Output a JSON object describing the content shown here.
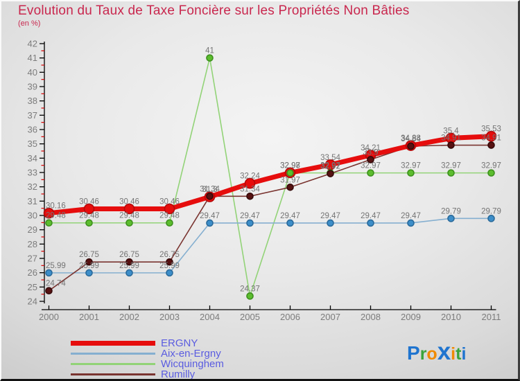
{
  "title": "Evolution du Taux de Taxe Foncière sur les Propriétés Non Bâties",
  "subtitle": "(en %)",
  "colors": {
    "title": "#c9274e",
    "legend_text": "#5a5ce0",
    "axis": "#000000",
    "minor_tick": "#d40000",
    "tick_label": "#7c7c7c",
    "point_label": "#747474"
  },
  "chart_data": {
    "type": "line",
    "x": [
      "2000",
      "2001",
      "2002",
      "2003",
      "2004",
      "2005",
      "2006",
      "2007",
      "2008",
      "2009",
      "2010",
      "2011"
    ],
    "ylim": [
      24,
      42
    ],
    "ytick_major_step": 1,
    "ytick_minor_step": 0.5,
    "grid": false,
    "legend_position": "bottom-left",
    "series": [
      {
        "name": "ERGNY",
        "color": "#e60d0d",
        "dot_fill": "#e60d0d",
        "dot_edge": "#b50909",
        "line_width": 7,
        "dot_radius": 7,
        "values": [
          30.16,
          30.46,
          30.46,
          30.46,
          31.3,
          32.24,
          32.98,
          33.54,
          34.21,
          34.88,
          35.4,
          35.53
        ],
        "labels": [
          "30.16",
          "30.46",
          "30.46",
          "30.46",
          "31.3",
          "32.24",
          "32.98",
          "33.54",
          "34.21",
          "34.88",
          "35.4",
          "35.53"
        ]
      },
      {
        "name": "Aix-en-Ergny",
        "color": "#85afd0",
        "dot_fill": "#3d8ec9",
        "dot_edge": "#2a6a9a",
        "line_width": 1.6,
        "dot_radius": 4.5,
        "values": [
          25.99,
          25.99,
          25.99,
          25.99,
          29.47,
          29.47,
          29.47,
          29.47,
          29.47,
          29.47,
          29.79,
          29.79
        ],
        "labels": [
          "25.99",
          "25.99",
          "25.99",
          "25.99",
          "29.47",
          "29.47",
          "29.47",
          "29.47",
          "29.47",
          "29.47",
          "29.79",
          "29.79"
        ]
      },
      {
        "name": "Wicquinghem",
        "color": "#92d377",
        "dot_fill": "#5cbd2e",
        "dot_edge": "#3d8f1d",
        "line_width": 1.6,
        "dot_radius": 4.5,
        "values": [
          29.48,
          29.48,
          29.48,
          29.48,
          41,
          24.37,
          32.97,
          32.97,
          32.97,
          32.97,
          32.97,
          32.97
        ],
        "labels": [
          "29.48",
          "29.48",
          "29.48",
          "29.48",
          "41",
          "24.37",
          "32.97",
          "32.97",
          "32.97",
          "32.97",
          "32.97",
          "32.97"
        ]
      },
      {
        "name": "Rumilly",
        "color": "#7a3430",
        "dot_fill": "#571212",
        "dot_edge": "#360a0a",
        "line_width": 1.6,
        "dot_radius": 4.5,
        "values": [
          24.74,
          26.75,
          26.75,
          26.75,
          31.34,
          31.34,
          31.97,
          32.92,
          33.9,
          34.84,
          34.91,
          34.91
        ],
        "labels": [
          "24.74",
          "26.75",
          "26.75",
          "26.75",
          "31.34",
          "31.34",
          "31.97",
          "32.92",
          "33.9",
          "34.84",
          "34.91",
          "34.91"
        ]
      }
    ]
  },
  "logo": {
    "name": "Proxiti",
    "letters": [
      {
        "ch": "P",
        "color": "#1f74cf",
        "size": 28
      },
      {
        "ch": "r",
        "color": "#3aa33a",
        "size": 25
      },
      {
        "ch": "o",
        "color": "#f08a00",
        "size": 25
      },
      {
        "ch": "x",
        "color": "#1f74cf",
        "size": 35
      },
      {
        "ch": "i",
        "color": "#f08a00",
        "size": 25
      },
      {
        "ch": "t",
        "color": "#3aa33a",
        "size": 25
      },
      {
        "ch": "i",
        "color": "#1f74cf",
        "size": 25
      }
    ]
  }
}
